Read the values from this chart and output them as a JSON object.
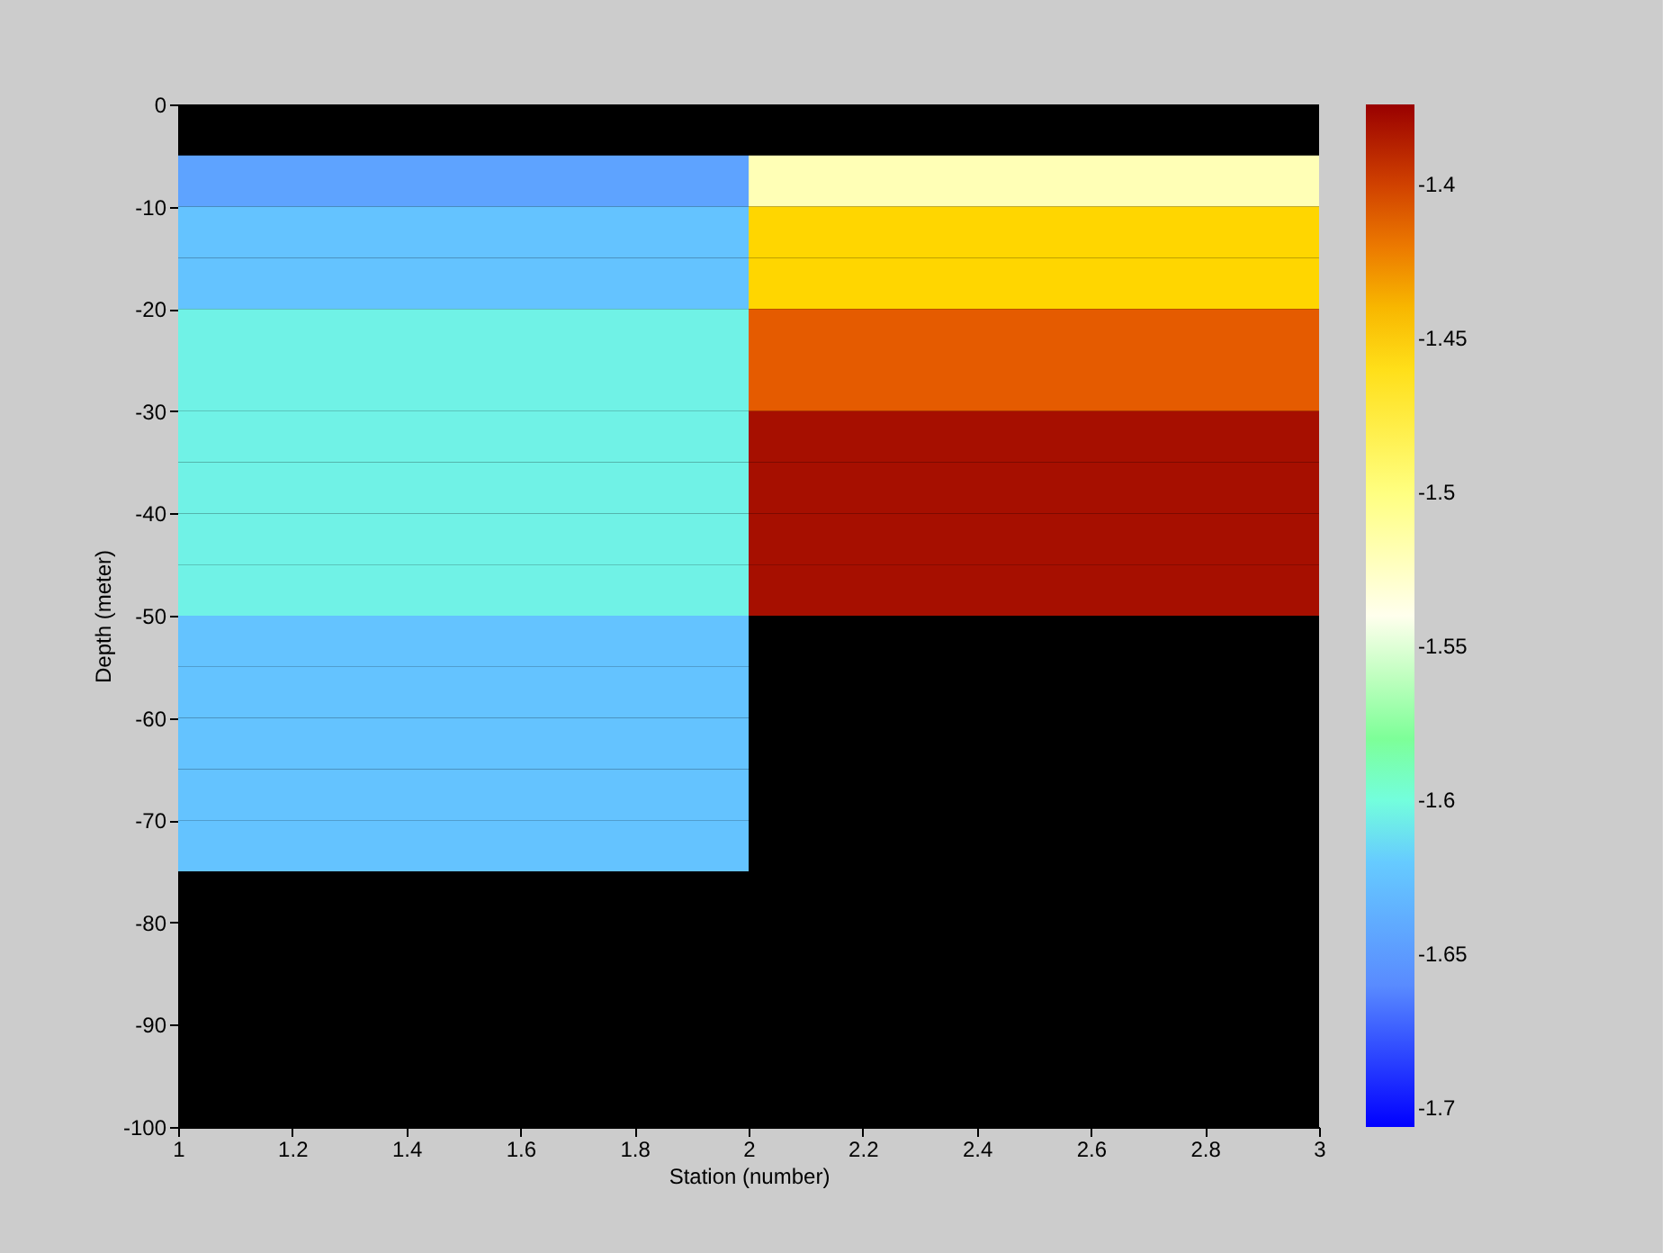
{
  "chart_data": {
    "type": "heatmap",
    "xlabel": "Station (number)",
    "ylabel": "Depth (meter)",
    "x": [
      1.5,
      2.5
    ],
    "y": [
      -7.5,
      -12.5,
      -17.5,
      -22.5,
      -27.5,
      -32.5,
      -37.5,
      -42.5,
      -47.5,
      -52.5,
      -57.5,
      -62.5,
      -67.5,
      -72.5
    ],
    "cells": [
      [
        -1.645,
        -1.52
      ],
      [
        -1.625,
        -1.45
      ],
      [
        -1.625,
        -1.45
      ],
      [
        -1.605,
        -1.41
      ],
      [
        -1.605,
        -1.41
      ],
      [
        -1.605,
        -1.38
      ],
      [
        -1.605,
        -1.38
      ],
      [
        -1.605,
        -1.38
      ],
      [
        -1.605,
        -1.38
      ],
      [
        -1.625,
        null
      ],
      [
        -1.625,
        null
      ],
      [
        -1.625,
        null
      ],
      [
        -1.625,
        null
      ],
      [
        -1.625,
        null
      ]
    ],
    "xlim": [
      1,
      3
    ],
    "xticks": [
      1,
      1.2,
      1.4,
      1.6,
      1.8,
      2,
      2.2,
      2.4,
      2.6,
      2.8,
      3
    ],
    "ylim": [
      -100,
      0
    ],
    "yticks": [
      -100,
      -90,
      -80,
      -70,
      -60,
      -50,
      -40,
      -30,
      -20,
      -10,
      0
    ],
    "clim": [
      -1.706,
      -1.374
    ],
    "cticks": [
      -1.7,
      -1.65,
      -1.6,
      -1.55,
      -1.5,
      -1.45,
      -1.4
    ],
    "grid": false
  }
}
